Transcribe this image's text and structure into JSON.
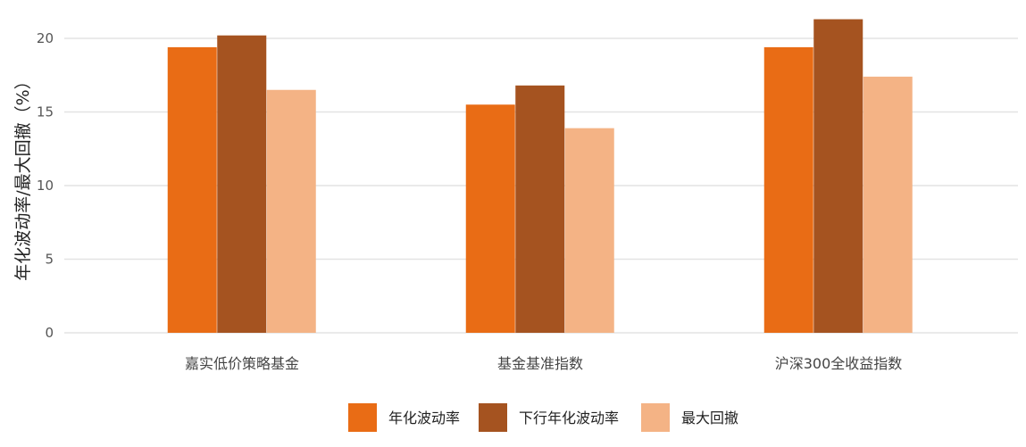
{
  "chart_data": {
    "type": "bar",
    "categories": [
      "嘉实低价策略基金",
      "基金基准指数",
      "沪深300全收益指数"
    ],
    "series": [
      {
        "name": "年化波动率",
        "values": [
          19.4,
          15.5,
          19.4
        ],
        "color": "#E96C15"
      },
      {
        "name": "下行年化波动率",
        "values": [
          20.2,
          16.8,
          21.3
        ],
        "color": "#A55320"
      },
      {
        "name": "最大回撤",
        "values": [
          16.5,
          13.9,
          17.4
        ],
        "color": "#F4B385"
      }
    ],
    "ylabel": "年化波动率/最大回撤（%）",
    "xlabel": "",
    "ylim": [
      0,
      22
    ],
    "yticks": [
      "0",
      "5",
      "10",
      "15",
      "20"
    ],
    "grid": true,
    "legend_position": "bottom-center"
  }
}
